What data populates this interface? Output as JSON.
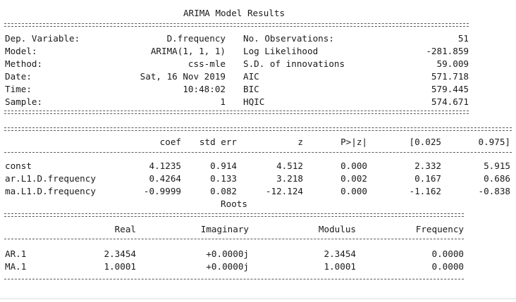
{
  "title": "ARIMA Model Results",
  "info_rows": [
    {
      "left_label": "Dep. Variable:",
      "left_value": "D.frequency",
      "right_label": "No. Observations:",
      "right_value": "51"
    },
    {
      "left_label": "Model:",
      "left_value": "ARIMA(1, 1, 1)",
      "right_label": "Log Likelihood",
      "right_value": "-281.859"
    },
    {
      "left_label": "Method:",
      "left_value": "css-mle",
      "right_label": "S.D. of innovations",
      "right_value": "59.009"
    },
    {
      "left_label": "Date:",
      "left_value": "Sat, 16 Nov 2019",
      "right_label": "AIC",
      "right_value": "571.718"
    },
    {
      "left_label": "Time:",
      "left_value": "10:48:02",
      "right_label": "BIC",
      "right_value": "579.445"
    },
    {
      "left_label": "Sample:",
      "left_value": "1",
      "right_label": "HQIC",
      "right_value": "574.671"
    }
  ],
  "coef_headers": [
    "coef",
    "std err",
    "z",
    "P>|z|",
    "[0.025",
    "0.975]"
  ],
  "coef_rows": [
    {
      "name": "const",
      "values": [
        "4.1235",
        "0.914",
        "4.512",
        "0.000",
        "2.332",
        "5.915"
      ]
    },
    {
      "name": "ar.L1.D.frequency",
      "values": [
        "0.4264",
        "0.133",
        "3.218",
        "0.002",
        "0.167",
        "0.686"
      ]
    },
    {
      "name": "ma.L1.D.frequency",
      "values": [
        "-0.9999",
        "0.082",
        "-12.124",
        "0.000",
        "-1.162",
        "-0.838"
      ]
    }
  ],
  "roots_title": "Roots",
  "roots_headers": [
    "Real",
    "Imaginary",
    "Modulus",
    "Frequency"
  ],
  "roots_rows": [
    {
      "name": "AR.1",
      "values": [
        "2.3454",
        "+0.0000j",
        "2.3454",
        "0.0000"
      ]
    },
    {
      "name": "MA.1",
      "values": [
        "1.0001",
        "+0.0000j",
        "1.0001",
        "0.0000"
      ]
    }
  ]
}
